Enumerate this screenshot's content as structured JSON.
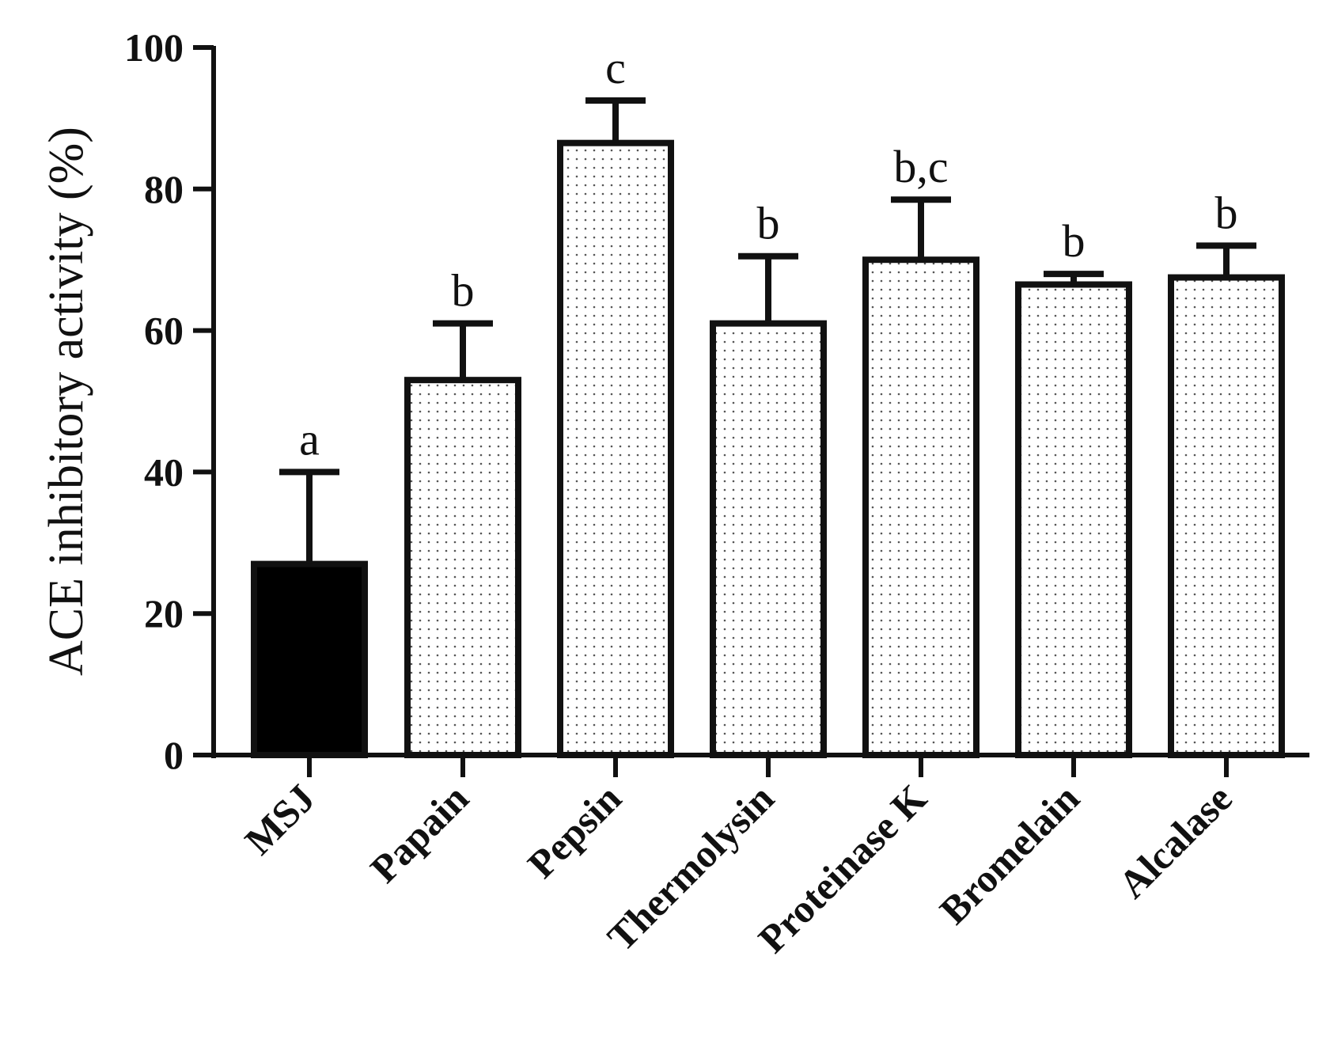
{
  "chart_data": {
    "type": "bar",
    "categories": [
      "MSJ",
      "Papain",
      "Pepsin",
      "Thermolysin",
      "Proteinase K",
      "Bromelain",
      "Alcalase"
    ],
    "values": [
      27,
      53,
      86.5,
      61,
      70,
      66.5,
      67.5
    ],
    "errors": [
      13,
      8,
      6,
      9.5,
      8.5,
      1.5,
      4.5
    ],
    "significance_labels": [
      "a",
      "b",
      "c",
      "b",
      "b,c",
      "b",
      "b"
    ],
    "bar_styles": [
      "solid",
      "dotted",
      "dotted",
      "dotted",
      "dotted",
      "dotted",
      "dotted"
    ],
    "title": "",
    "xlabel": "",
    "ylabel": "ACE inhibitory activity (%)",
    "ylim": [
      0,
      100
    ],
    "yticks": [
      0,
      20,
      40,
      60,
      80,
      100
    ],
    "grid": false,
    "colors": {
      "solid_fill": "#000000",
      "dot_fill": "#555555",
      "bar_bg": "#ffffff",
      "stroke": "#111111"
    }
  }
}
